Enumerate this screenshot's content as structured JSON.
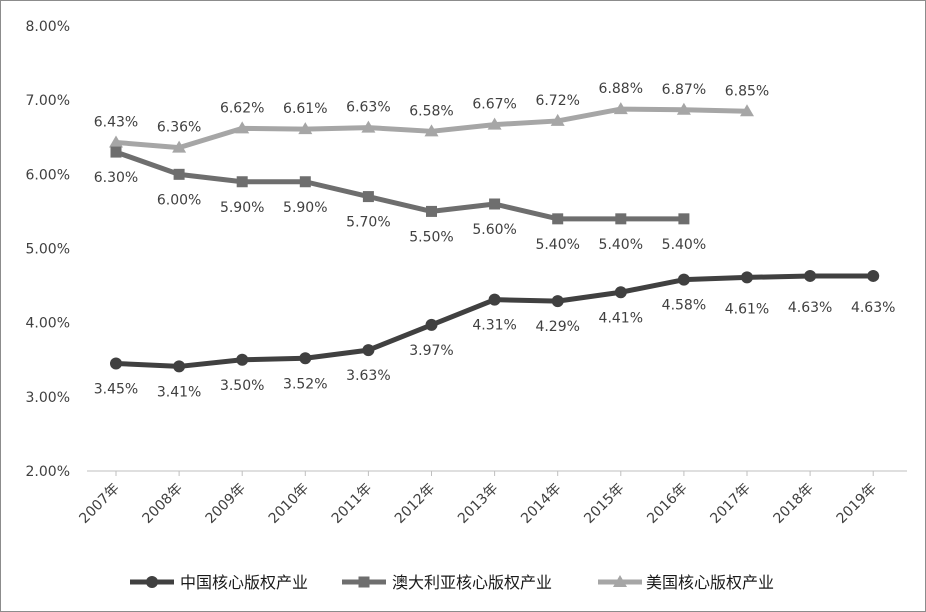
{
  "chart_data": {
    "type": "line",
    "title": "",
    "xlabel": "",
    "ylabel": "",
    "categories": [
      "2007年",
      "2008年",
      "2009年",
      "2010年",
      "2011年",
      "2012年",
      "2013年",
      "2014年",
      "2015年",
      "2016年",
      "2017年",
      "2018年",
      "2019年"
    ],
    "ylim": [
      2,
      8
    ],
    "yticks": [
      "2.00%",
      "3.00%",
      "4.00%",
      "5.00%",
      "6.00%",
      "7.00%",
      "8.00%"
    ],
    "grid": false,
    "legend_position": "bottom",
    "series": [
      {
        "name": "中国核心版权产业",
        "marker": "circle",
        "color": "#404040",
        "values": [
          3.45,
          3.41,
          3.5,
          3.52,
          3.63,
          3.97,
          4.31,
          4.29,
          4.41,
          4.58,
          4.61,
          4.63,
          4.63
        ],
        "labels": [
          "3.45%",
          "3.41%",
          "3.50%",
          "3.52%",
          "3.63%",
          "3.97%",
          "4.31%",
          "4.29%",
          "4.41%",
          "4.58%",
          "4.61%",
          "4.63%",
          "4.63%"
        ]
      },
      {
        "name": "澳大利亚核心版权产业",
        "marker": "square",
        "color": "#6e6e6e",
        "values": [
          6.3,
          6.0,
          5.9,
          5.9,
          5.7,
          5.5,
          5.6,
          5.4,
          5.4,
          5.4,
          null,
          null,
          null
        ],
        "labels": [
          "6.30%",
          "6.00%",
          "5.90%",
          "5.90%",
          "5.70%",
          "5.50%",
          "5.60%",
          "5.40%",
          "5.40%",
          "5.40%",
          null,
          null,
          null
        ]
      },
      {
        "name": "美国核心版权产业",
        "marker": "triangle",
        "color": "#a6a6a6",
        "values": [
          6.43,
          6.36,
          6.62,
          6.61,
          6.63,
          6.58,
          6.67,
          6.72,
          6.88,
          6.87,
          6.85,
          null,
          null
        ],
        "labels": [
          "6.43%",
          "6.36%",
          "6.62%",
          "6.61%",
          "6.63%",
          "6.58%",
          "6.67%",
          "6.72%",
          "6.88%",
          "6.87%",
          "6.85%",
          null,
          null
        ]
      }
    ]
  }
}
